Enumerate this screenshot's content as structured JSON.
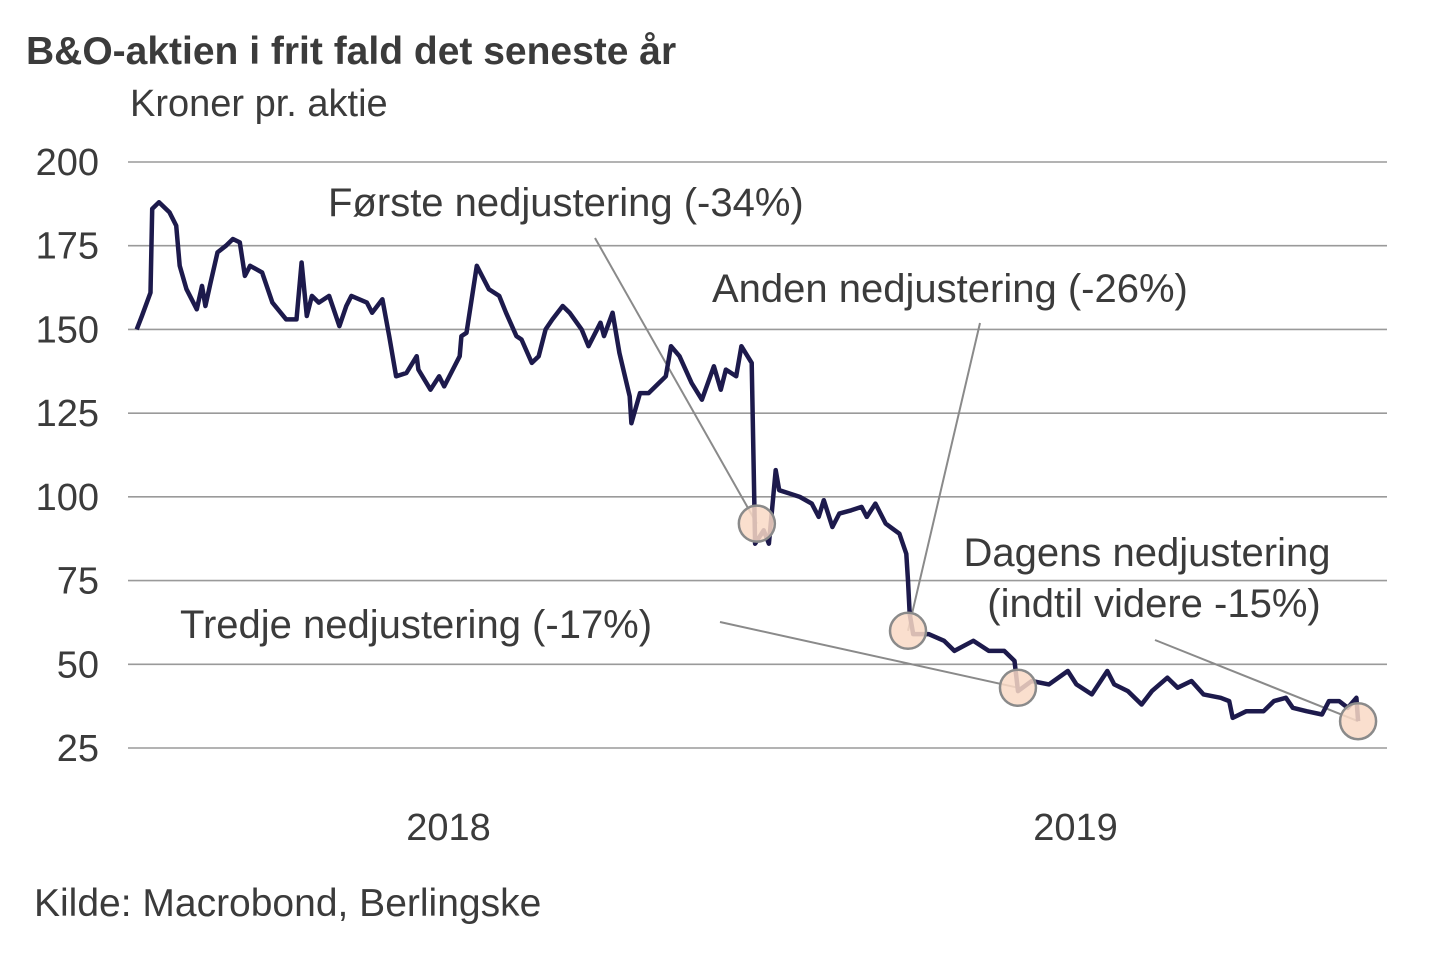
{
  "chart_data": {
    "type": "line",
    "title": "B&O-aktien i frit fald det seneste år",
    "ylabel": "Kroner pr. aktie",
    "xlabel": "",
    "ylim": [
      25,
      200
    ],
    "yticks": [
      "200",
      "175",
      "150",
      "125",
      "100",
      "75",
      "50",
      "25"
    ],
    "xticks": [
      {
        "label": "2018",
        "year": 2018
      },
      {
        "label": "2019",
        "year": 2019
      }
    ],
    "grid": true,
    "source": "Kilde: Macrobond, Berlingske",
    "line_color": "#1d1a4c",
    "marker_color": "#f9d9c6",
    "series": [
      {
        "x": [
          "2018-01-02",
          "2018-01-05",
          "2018-01-10",
          "2018-01-11",
          "2018-01-15",
          "2018-01-21",
          "2018-01-25",
          "2018-01-27",
          "2018-01-31",
          "2018-02-06",
          "2018-02-09",
          "2018-02-11",
          "2018-02-14",
          "2018-02-18",
          "2018-02-23",
          "2018-02-27",
          "2018-03-03",
          "2018-03-06",
          "2018-03-09",
          "2018-03-16",
          "2018-03-22",
          "2018-03-30",
          "2018-04-05",
          "2018-04-08",
          "2018-04-11",
          "2018-04-14",
          "2018-04-18",
          "2018-04-24",
          "2018-04-30",
          "2018-05-04",
          "2018-05-07",
          "2018-05-16",
          "2018-05-19",
          "2018-05-25",
          "2018-05-29",
          "2018-06-02",
          "2018-06-08",
          "2018-06-14",
          "2018-06-15",
          "2018-06-22",
          "2018-06-27",
          "2018-06-30",
          "2018-07-05",
          "2018-07-09",
          "2018-07-10",
          "2018-07-13",
          "2018-07-19",
          "2018-07-22",
          "2018-07-26",
          "2018-08-01",
          "2018-08-05",
          "2018-08-11",
          "2018-08-14",
          "2018-08-20",
          "2018-08-24",
          "2018-08-28",
          "2018-09-01",
          "2018-09-07",
          "2018-09-11",
          "2018-09-18",
          "2018-09-22",
          "2018-09-29",
          "2018-10-01",
          "2018-10-06",
          "2018-10-10",
          "2018-10-16",
          "2018-10-17",
          "2018-10-22",
          "2018-10-27",
          "2018-11-06",
          "2018-11-09",
          "2018-11-14",
          "2018-11-21",
          "2018-11-27",
          "2018-12-04",
          "2018-12-08",
          "2018-12-11",
          "2018-12-17",
          "2018-12-20",
          "2018-12-26",
          "2018-12-28",
          "2019-01-02",
          "2019-01-05",
          "2019-01-09",
          "2019-01-11",
          "2019-01-17",
          "2019-01-23",
          "2019-01-30",
          "2019-02-03",
          "2019-02-06",
          "2019-02-11",
          "2019-02-15",
          "2019-02-22",
          "2019-02-28",
          "2019-03-03",
          "2019-03-08",
          "2019-03-14",
          "2019-03-22",
          "2019-03-26",
          "2019-03-27",
          "2019-03-28",
          "2019-03-30",
          "2019-04-08",
          "2019-04-17",
          "2019-04-23",
          "2019-05-04",
          "2019-05-13",
          "2019-05-22",
          "2019-05-28",
          "2019-05-30",
          "2019-06-07",
          "2019-06-17",
          "2019-06-28",
          "2019-07-03",
          "2019-07-12",
          "2019-07-21",
          "2019-07-25",
          "2019-08-02",
          "2019-08-10",
          "2019-08-16",
          "2019-08-25",
          "2019-08-31",
          "2019-09-08",
          "2019-09-15",
          "2019-09-25",
          "2019-09-30",
          "2019-10-02",
          "2019-10-10",
          "2019-10-20",
          "2019-10-26",
          "2019-11-02",
          "2019-11-06",
          "2019-11-14",
          "2019-11-23",
          "2019-11-27",
          "2019-12-03",
          "2019-12-08",
          "2019-12-13",
          "2019-12-14"
        ],
        "y": [
          150,
          154,
          161,
          186,
          188,
          185,
          181,
          169,
          162,
          156,
          163,
          157,
          164,
          173,
          175,
          177,
          176,
          166,
          169,
          167,
          158,
          153,
          153,
          170,
          154,
          160,
          158,
          160,
          151,
          157,
          160,
          158,
          155,
          159,
          148,
          136,
          137,
          142,
          138,
          132,
          136,
          133,
          138,
          142,
          148,
          149,
          169,
          166,
          162,
          160,
          155,
          148,
          147,
          140,
          142,
          150,
          153,
          157,
          155,
          150,
          145,
          152,
          148,
          155,
          143,
          130,
          122,
          131,
          131,
          136,
          145,
          142,
          134,
          129,
          139,
          132,
          138,
          136,
          145,
          140,
          86,
          90,
          86,
          108,
          102,
          101,
          100,
          98,
          94,
          99,
          91,
          95,
          96,
          97,
          94,
          98,
          92,
          89,
          83,
          75,
          65,
          59,
          59,
          57,
          54,
          57,
          54,
          54,
          51,
          42,
          45,
          44,
          48,
          44,
          41,
          48,
          44,
          42,
          38,
          42,
          46,
          43,
          45,
          41,
          40,
          39,
          34,
          36,
          36,
          39,
          40,
          37,
          36,
          35,
          39,
          39,
          37,
          40,
          33
        ]
      }
    ],
    "annotations": [
      {
        "text": "Første nedjustering (-34%)",
        "date": "2018-12-29",
        "value": 92
      },
      {
        "text": "Anden nedjustering (-26%)",
        "date": "2019-03-27",
        "value": 60
      },
      {
        "text": "Tredje nedjustering (-17%)",
        "date": "2019-05-30",
        "value": 43
      },
      {
        "text": "Dagens nedjustering",
        "text2": "(indtil videre -15%)",
        "date": "2019-12-14",
        "value": 33
      }
    ]
  }
}
